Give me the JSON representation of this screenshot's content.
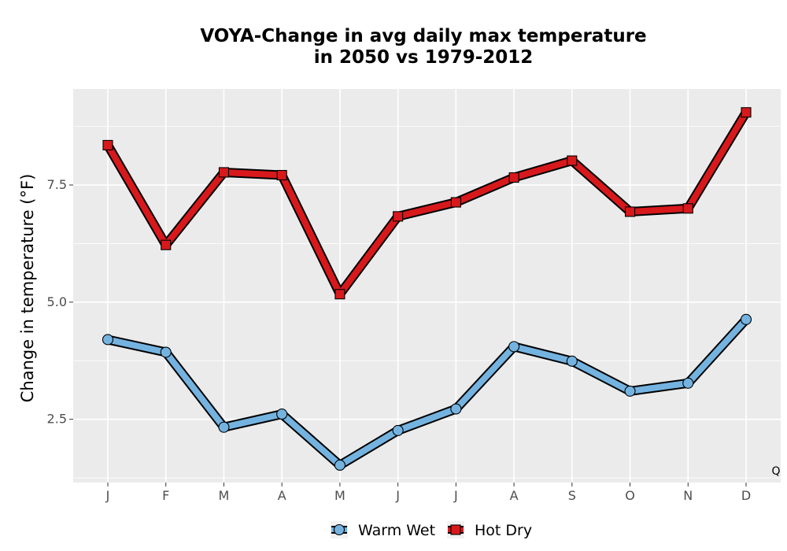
{
  "chart_data": {
    "type": "line",
    "title_line1": "VOYA-Change in avg daily max temperature",
    "title_line2": "in 2050 vs 1979-2012",
    "xlabel": "",
    "ylabel": "Change in temperature (°F)",
    "categories": [
      "J",
      "F",
      "M",
      "A",
      "M",
      "J",
      "J",
      "A",
      "S",
      "O",
      "N",
      "D"
    ],
    "ylim": [
      1.15,
      9.55
    ],
    "yticks": [
      2.5,
      5.0,
      7.5
    ],
    "ytick_labels": [
      "2.5",
      "5.0",
      "7.5"
    ],
    "grid": true,
    "legend_position": "bottom",
    "corner_label": "Q",
    "series": [
      {
        "name": "Warm Wet",
        "color": "#74b3e0",
        "marker": "circle",
        "values": [
          4.2,
          3.93,
          2.33,
          2.61,
          1.52,
          2.26,
          2.72,
          4.05,
          3.74,
          3.1,
          3.27,
          4.63
        ]
      },
      {
        "name": "Hot Dry",
        "color": "#d7191c",
        "marker": "square",
        "values": [
          8.35,
          6.22,
          7.77,
          7.71,
          5.17,
          6.83,
          7.13,
          7.66,
          8.02,
          6.93,
          7.0,
          9.05
        ]
      }
    ]
  }
}
